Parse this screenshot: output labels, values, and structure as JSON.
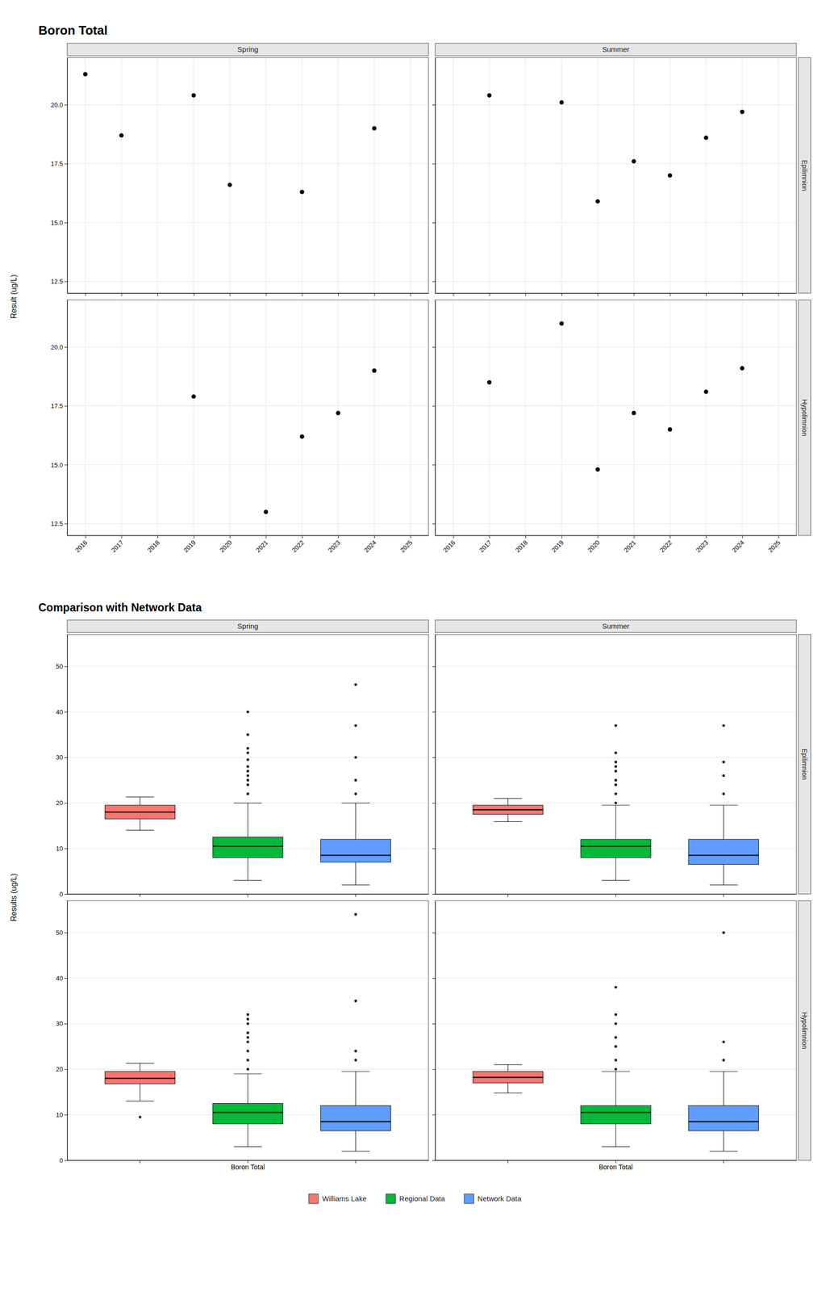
{
  "chart_data": [
    {
      "type": "scatter",
      "title": "Boron Total",
      "ylabel": "Result (ug/L)",
      "facet_columns": [
        "Spring",
        "Summer"
      ],
      "facet_rows": [
        "Epilimnion",
        "Hypolimnion"
      ],
      "color": "#000000",
      "xlim": [
        2015.5,
        2025.5
      ],
      "xticks": [
        2016,
        2017,
        2018,
        2019,
        2020,
        2021,
        2022,
        2023,
        2024,
        2025
      ],
      "ylim": [
        12.0,
        22.0
      ],
      "yticks": [
        12.5,
        {
          "value": 15.0,
          "label": "15.0"
        },
        17.5,
        {
          "value": 20.0,
          "label": "20.0"
        }
      ],
      "grid": true,
      "panels": [
        {
          "x": [
            2016,
            2017,
            2019,
            2020,
            2022,
            2024
          ],
          "values": [
            21.3,
            18.7,
            20.4,
            16.6,
            16.3,
            19.0
          ]
        },
        {
          "x": [
            2017,
            2019,
            2020,
            2021,
            2022,
            2023,
            2024
          ],
          "values": [
            20.4,
            20.1,
            15.9,
            17.6,
            17.0,
            18.6,
            19.7
          ]
        },
        {
          "x": [
            2019,
            2021,
            2022,
            2023,
            2024
          ],
          "values": [
            17.9,
            13.0,
            16.2,
            17.2,
            19.0
          ]
        },
        {
          "x": [
            2017,
            2019,
            2020,
            2021,
            2022,
            2023,
            2024
          ],
          "values": [
            18.5,
            21.0,
            14.8,
            17.2,
            16.5,
            18.1,
            19.1
          ]
        }
      ]
    },
    {
      "type": "box",
      "title": "Comparison with Network Data",
      "ylabel": "Results (ug/L)",
      "facet_columns": [
        "Spring",
        "Summer"
      ],
      "facet_rows": [
        "Epilimnion",
        "Hypolimnion"
      ],
      "categories": [
        null,
        "Boron Total",
        null
      ],
      "ylim": [
        0,
        57
      ],
      "yticks": [
        0,
        10,
        20,
        30,
        40,
        50
      ],
      "grid": "y",
      "legend": "bottom",
      "series": [
        {
          "name": "Williams Lake",
          "color": "#F8766D"
        },
        {
          "name": "Regional Data",
          "color": "#00BA38"
        },
        {
          "name": "Network Data",
          "color": "#619CFF"
        }
      ],
      "panels": [
        {
          "series": [
            {
              "median": 18.0,
              "q1": 16.5,
              "q3": 19.5,
              "whisker_low": 14.0,
              "whisker_high": 21.3,
              "outliers": []
            },
            {
              "median": 10.5,
              "q1": 8.0,
              "q3": 12.5,
              "whisker_low": 3.0,
              "whisker_high": 20.0,
              "outliers": [
                22.0,
                24.0,
                25.0,
                26.0,
                27.0,
                28.0,
                29.5,
                31.0,
                32.0,
                35.0,
                40.0
              ]
            },
            {
              "median": 8.5,
              "q1": 7.0,
              "q3": 12.0,
              "whisker_low": 2.0,
              "whisker_high": 20.0,
              "outliers": [
                22.0,
                25.0,
                30.0,
                37.0,
                46.0
              ]
            }
          ]
        },
        {
          "series": [
            {
              "median": 18.5,
              "q1": 17.5,
              "q3": 19.5,
              "whisker_low": 15.9,
              "whisker_high": 21.0,
              "outliers": []
            },
            {
              "median": 10.5,
              "q1": 8.0,
              "q3": 12.0,
              "whisker_low": 3.0,
              "whisker_high": 19.5,
              "outliers": [
                20.0,
                22.0,
                24.0,
                25.0,
                27.0,
                28.0,
                29.0,
                31.0,
                37.0
              ]
            },
            {
              "median": 8.5,
              "q1": 6.5,
              "q3": 12.0,
              "whisker_low": 2.0,
              "whisker_high": 19.5,
              "outliers": [
                22.0,
                26.0,
                29.0,
                37.0
              ]
            }
          ]
        },
        {
          "series": [
            {
              "median": 18.0,
              "q1": 16.8,
              "q3": 19.5,
              "whisker_low": 13.0,
              "whisker_high": 21.3,
              "outliers": [
                9.5
              ]
            },
            {
              "median": 10.5,
              "q1": 8.0,
              "q3": 12.5,
              "whisker_low": 3.0,
              "whisker_high": 19.0,
              "outliers": [
                20.0,
                22.0,
                24.0,
                26.0,
                27.0,
                28.0,
                30.0,
                31.0,
                32.0
              ]
            },
            {
              "median": 8.5,
              "q1": 6.5,
              "q3": 12.0,
              "whisker_low": 2.0,
              "whisker_high": 19.5,
              "outliers": [
                22.0,
                24.0,
                35.0,
                54.0
              ]
            }
          ]
        },
        {
          "series": [
            {
              "median": 18.2,
              "q1": 17.0,
              "q3": 19.5,
              "whisker_low": 14.8,
              "whisker_high": 21.0,
              "outliers": []
            },
            {
              "median": 10.5,
              "q1": 8.0,
              "q3": 12.0,
              "whisker_low": 3.0,
              "whisker_high": 19.5,
              "outliers": [
                20.0,
                22.0,
                25.0,
                27.0,
                30.0,
                32.0,
                38.0
              ]
            },
            {
              "median": 8.5,
              "q1": 6.5,
              "q3": 12.0,
              "whisker_low": 2.0,
              "whisker_high": 19.5,
              "outliers": [
                22.0,
                26.0,
                50.0
              ]
            }
          ]
        }
      ]
    }
  ]
}
